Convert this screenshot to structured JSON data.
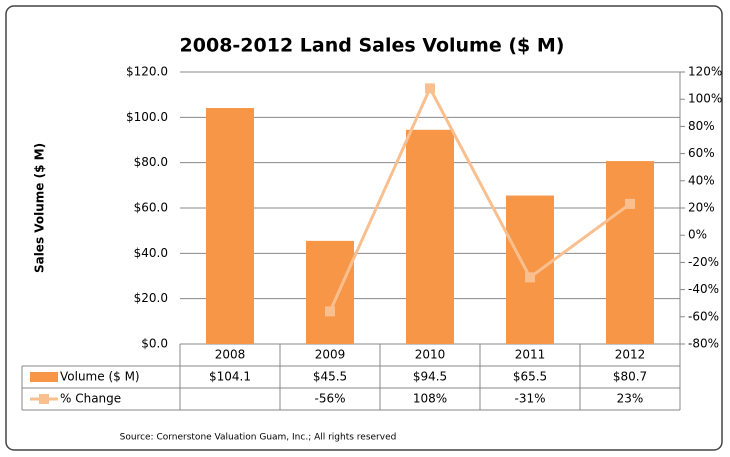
{
  "chart_data": {
    "type": "bar",
    "title": "2008-2012 Land Sales Volume ($ M)",
    "y_label": "Sales Volume ($ M)",
    "source": "Source: Cornerstone Valuation Guam, Inc.; All rights reserved",
    "categories": [
      "2008",
      "2009",
      "2010",
      "2011",
      "2012"
    ],
    "series": [
      {
        "name": "Volume ($ M)",
        "type": "bar",
        "color": "#f79646",
        "values": [
          104.1,
          45.5,
          94.5,
          65.5,
          80.7
        ],
        "value_labels": [
          "$104.1",
          "$45.5",
          "$94.5",
          "$65.5",
          "$80.7"
        ]
      },
      {
        "name": "% Change",
        "type": "line",
        "axis": "y2",
        "color": "#fabf8f",
        "values": [
          null,
          -56,
          108,
          -31,
          23
        ],
        "value_labels": [
          null,
          "-56%",
          "108%",
          "-31%",
          "23%"
        ]
      }
    ],
    "ylim": [
      0,
      120
    ],
    "yticks": [
      {
        "value": 0,
        "label": "$0.0"
      },
      {
        "value": 20,
        "label": "$20.0"
      },
      {
        "value": 40,
        "label": "$40.0"
      },
      {
        "value": 60,
        "label": "$60.0"
      },
      {
        "value": 80,
        "label": "$80.0"
      },
      {
        "value": 100,
        "label": "$100.0"
      },
      {
        "value": 120,
        "label": "$120.0"
      }
    ],
    "y2lim": [
      -80,
      120
    ],
    "y2ticks": [
      {
        "value": -80,
        "label": "-80%"
      },
      {
        "value": -60,
        "label": "-60%"
      },
      {
        "value": -40,
        "label": "-40%"
      },
      {
        "value": -20,
        "label": "-20%"
      },
      {
        "value": 0,
        "label": "0%"
      },
      {
        "value": 20,
        "label": "20%"
      },
      {
        "value": 40,
        "label": "40%"
      },
      {
        "value": 60,
        "label": "60%"
      },
      {
        "value": 80,
        "label": "80%"
      },
      {
        "value": 100,
        "label": "100%"
      },
      {
        "value": 120,
        "label": "120%"
      }
    ],
    "grid": true
  }
}
